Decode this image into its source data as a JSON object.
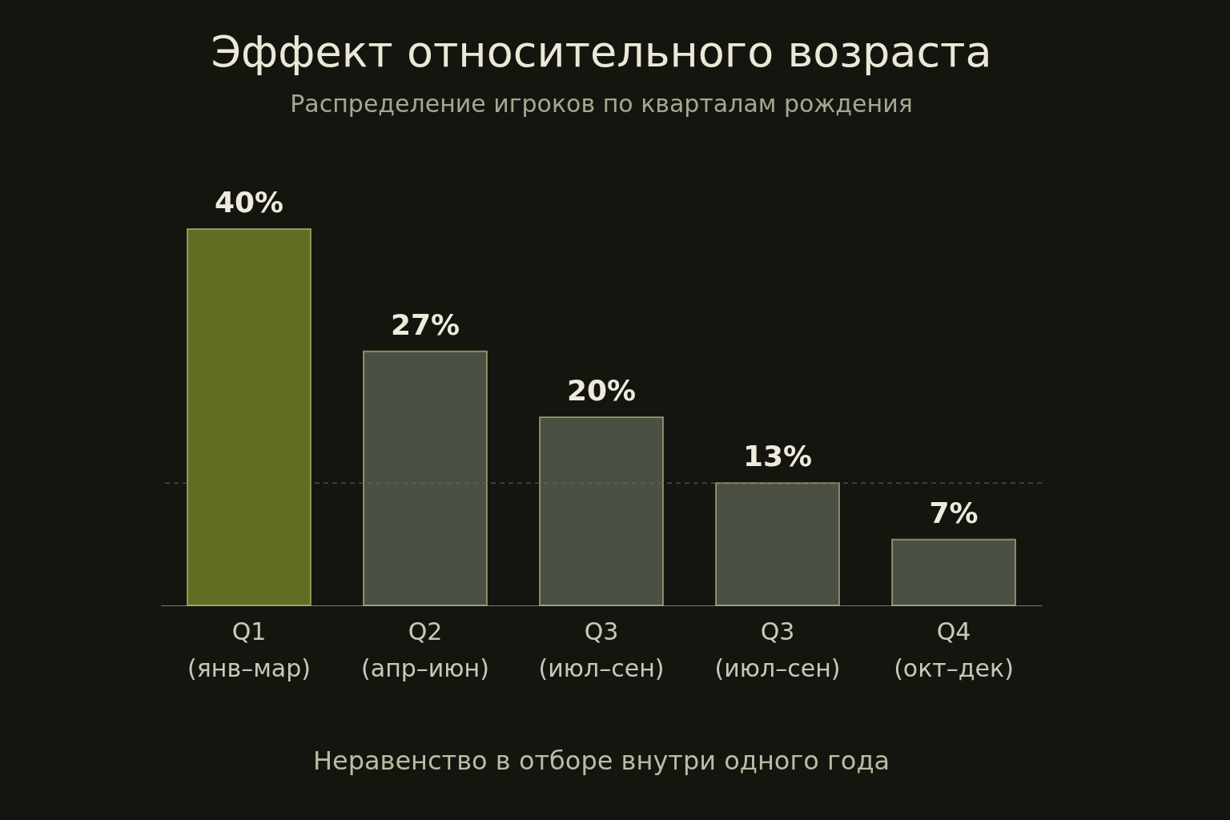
{
  "chart_data": {
    "type": "bar",
    "title": "Эффект относительного возраста",
    "subtitle": "Распределение игроков по кварталам рождения",
    "categories": [
      "Q1\n(янв–мар)",
      "Q2\n(апр–июн)",
      "Q3\n(июл–сен)",
      "Q3\n(июл–сен)",
      "Q4\n(окт–дек)"
    ],
    "values": [
      40,
      27,
      20,
      13,
      7
    ],
    "colors": [
      "#5f6e22",
      "#4a5044",
      "#4a5044",
      "#4a5044",
      "#4a5044"
    ],
    "value_labels": [
      "40%",
      "27%",
      "20%",
      "13%",
      "7%"
    ],
    "ref_lines": [
      {
        "axis": "y",
        "value": 13,
        "label": null,
        "color": "#6a6a58",
        "line_style": "dashed"
      }
    ],
    "annotations": [
      "Неравенство в отборе внутри одного года"
    ]
  }
}
